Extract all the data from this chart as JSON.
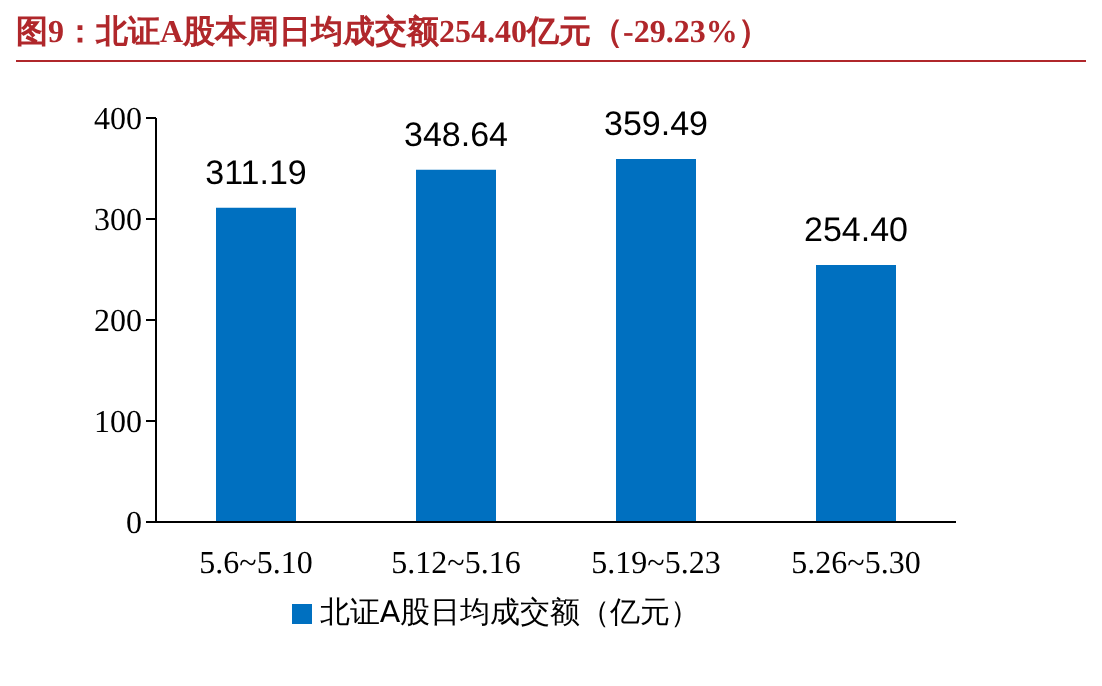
{
  "chart_data": {
    "type": "bar",
    "title": "图9：北证A股本周日均成交额254.40亿元（-29.23%）",
    "categories": [
      "5.6~5.10",
      "5.12~5.16",
      "5.19~5.23",
      "5.26~5.30"
    ],
    "series": [
      {
        "name": "北证A股日均成交额（亿元）",
        "color": "#0070c0",
        "values": [
          311.19,
          348.64,
          359.49,
          254.4
        ],
        "value_labels": [
          "311.19",
          "348.64",
          "359.49",
          "254.40"
        ]
      }
    ],
    "ylim": [
      0,
      400
    ],
    "yticks": [
      0,
      100,
      200,
      300,
      400
    ],
    "grid": false,
    "legend": "bottom"
  }
}
